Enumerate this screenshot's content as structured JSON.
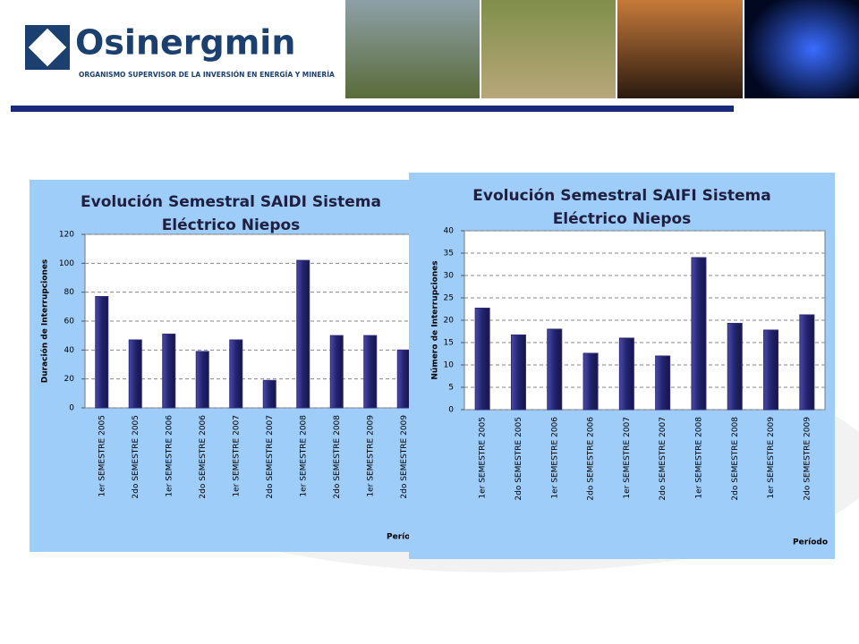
{
  "header": {
    "logo": "Osinergmin",
    "tagline": "ORGANISMO SUPERVISOR DE LA INVERSIÓN EN ENERGÍA Y MINERÍA"
  },
  "chart_data": [
    {
      "type": "bar",
      "title": "Evolución Semestral SAIDI Sistema Eléctrico Niepos",
      "y_label": "Duración de Interrupciones",
      "x_label": "Período",
      "categories": [
        "1er SEMESTRE 2005",
        "2do SEMESTRE 2005",
        "1er SEMESTRE 2006",
        "2do SEMESTRE 2006",
        "1er SEMESTRE 2007",
        "2do SEMESTRE 2007",
        "1er SEMESTRE 2008",
        "2do SEMESTRE 2008",
        "1er SEMESTRE 2009",
        "2do SEMESTRE 2009"
      ],
      "values": [
        77,
        47,
        51,
        39,
        47,
        19,
        102,
        50,
        50,
        40
      ],
      "color": "#2b2b7c",
      "ylim": [
        0,
        120
      ],
      "yticks": [
        0,
        20,
        40,
        60,
        80,
        100,
        120
      ],
      "grid": true
    },
    {
      "type": "bar",
      "title": "Evolución Semestral SAIFI Sistema Eléctrico Niepos",
      "y_label": "Número de Interrupciones",
      "x_label": "Período",
      "categories": [
        "1er SEMESTRE 2005",
        "2do SEMESTRE 2005",
        "1er SEMESTRE 2006",
        "2do SEMESTRE 2006",
        "1er SEMESTRE 2007",
        "2do SEMESTRE 2007",
        "1er SEMESTRE 2008",
        "2do SEMESTRE 2008",
        "1er SEMESTRE 2009",
        "2do SEMESTRE 2009"
      ],
      "values": [
        22.7,
        16.7,
        18,
        12.6,
        16,
        12,
        34,
        19.3,
        17.8,
        21.2
      ],
      "color": "#2b2b7c",
      "ylim": [
        0,
        40
      ],
      "yticks": [
        0,
        5,
        10,
        15,
        20,
        25,
        30,
        35,
        40
      ],
      "grid": true
    }
  ]
}
